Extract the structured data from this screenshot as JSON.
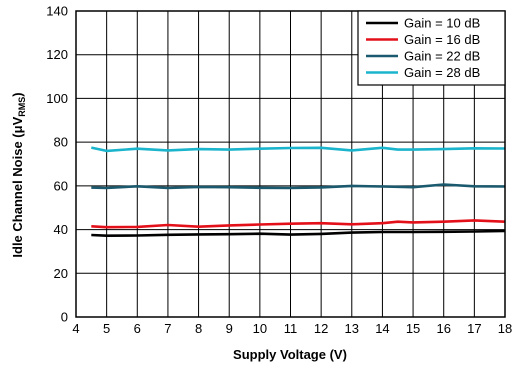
{
  "chart_data": {
    "type": "line",
    "xlabel": "Supply Voltage (V)",
    "ylabel": {
      "prefix": "Idle Channel Noise (",
      "mu": "μ",
      "v": "V",
      "sub": "RMS",
      "suffix": ")"
    },
    "xlim": [
      4,
      18
    ],
    "ylim": [
      0,
      140
    ],
    "xticks": [
      "4",
      "5",
      "6",
      "7",
      "8",
      "9",
      "10",
      "11",
      "12",
      "13",
      "14",
      "15",
      "16",
      "17",
      "18"
    ],
    "yticks": [
      "0",
      "20",
      "40",
      "60",
      "80",
      "100",
      "120",
      "140"
    ],
    "grid": true,
    "legend_position": "top-right",
    "series": [
      {
        "name": "Gain = 10 dB",
        "color": "#000000",
        "x": [
          4.5,
          5,
          6,
          7,
          8,
          9,
          10,
          11,
          12,
          13,
          14,
          15,
          16,
          17,
          18
        ],
        "y": [
          37.5,
          37.2,
          37.3,
          37.6,
          37.8,
          37.9,
          38.1,
          37.7,
          38.0,
          38.6,
          38.9,
          38.9,
          39.0,
          39.1,
          39.4
        ]
      },
      {
        "name": "Gain = 16 dB",
        "color": "#e3101a",
        "x": [
          4.5,
          5,
          6,
          7,
          8,
          9,
          10,
          11,
          12,
          13,
          14,
          14.5,
          15,
          16,
          17,
          18
        ],
        "y": [
          41.5,
          41.1,
          41.2,
          42.1,
          41.3,
          41.9,
          42.3,
          42.7,
          42.9,
          42.4,
          42.9,
          43.6,
          43.3,
          43.6,
          44.2,
          43.6
        ]
      },
      {
        "name": "Gain = 22 dB",
        "color": "#1b5a6e",
        "x": [
          4.5,
          5,
          6,
          7,
          8,
          9,
          10,
          11,
          12,
          13,
          14,
          15,
          16,
          17,
          18
        ],
        "y": [
          59.2,
          59.0,
          59.8,
          59.0,
          59.5,
          59.4,
          59.1,
          59.0,
          59.3,
          60.0,
          59.7,
          59.4,
          60.6,
          59.8,
          59.7
        ]
      },
      {
        "name": "Gain = 28 dB",
        "color": "#1ab4cc",
        "x": [
          4.5,
          5,
          6,
          7,
          8,
          9,
          10,
          11,
          12,
          13,
          14,
          14.5,
          15,
          16,
          17,
          18
        ],
        "y": [
          77.5,
          76.0,
          77.0,
          76.2,
          76.8,
          76.6,
          77.0,
          77.3,
          77.4,
          76.2,
          77.4,
          76.6,
          76.6,
          76.8,
          77.2,
          77.1
        ]
      }
    ]
  }
}
